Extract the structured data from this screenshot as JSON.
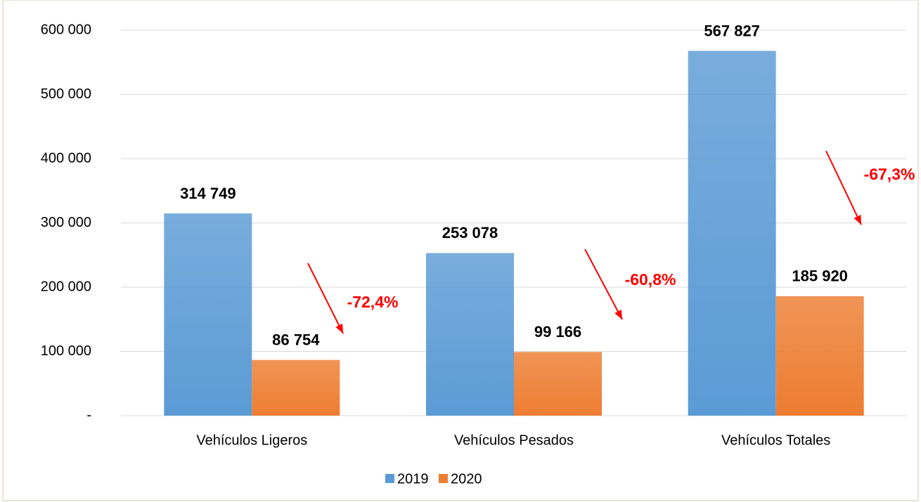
{
  "chart_data": {
    "type": "bar",
    "categories": [
      "Vehículos Ligeros",
      "Vehículos Pesados",
      "Vehículos Totales"
    ],
    "series": [
      {
        "name": "2019",
        "color": "#5b9bd5",
        "values": [
          314749,
          253078,
          567827
        ],
        "value_labels": [
          "314 749",
          "253 078",
          "567 827"
        ]
      },
      {
        "name": "2020",
        "color": "#ed7d31",
        "values": [
          86754,
          99166,
          185920
        ],
        "value_labels": [
          "86 754",
          "99 166",
          "185 920"
        ]
      }
    ],
    "ylim": [
      0,
      600000
    ],
    "yticks": [
      {
        "value": 0,
        "label": "-"
      },
      {
        "value": 100000,
        "label": "100 000"
      },
      {
        "value": 200000,
        "label": "200 000"
      },
      {
        "value": 300000,
        "label": "300 000"
      },
      {
        "value": 400000,
        "label": "400 000"
      },
      {
        "value": 500000,
        "label": "500 000"
      },
      {
        "value": 600000,
        "label": "600 000"
      }
    ],
    "grid": true,
    "legend": "bottom",
    "annotations": [
      "-72,4%",
      "-60,8%",
      "-67,3%"
    ],
    "annotation_color": "#ff0000"
  }
}
